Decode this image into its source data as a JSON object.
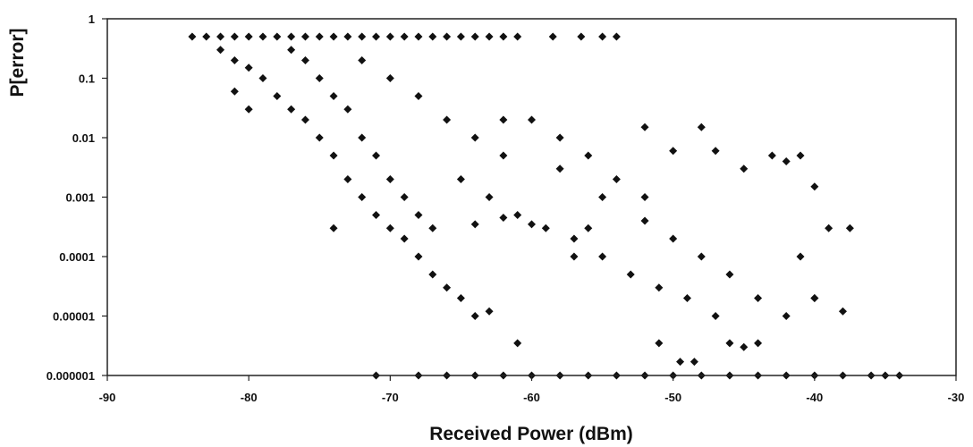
{
  "chart_data": {
    "type": "scatter",
    "title": "",
    "xlabel": "Received Power (dBm)",
    "ylabel": "P[error]",
    "xlim": [
      -90,
      -30
    ],
    "ylim": [
      1e-06,
      1
    ],
    "y_scale": "log",
    "grid": false,
    "legend": "none",
    "marker": "diamond",
    "marker_color": "#111111",
    "x_ticks": [
      -90,
      -80,
      -70,
      -60,
      -50,
      -40,
      -30
    ],
    "x_tick_labels": [
      "-90",
      "-80",
      "-70",
      "-60",
      "-50",
      "-40",
      "-30"
    ],
    "y_ticks": [
      1,
      0.1,
      0.01,
      0.001,
      0.0001,
      1e-05,
      1e-06
    ],
    "y_tick_labels": [
      "1",
      "0.1",
      "0.01",
      "0.001",
      "0.0001",
      "0.00001",
      "0.000001"
    ],
    "series": [
      {
        "points": [
          [
            -84,
            0.5
          ],
          [
            -83,
            0.5
          ],
          [
            -82,
            0.5
          ],
          [
            -81,
            0.5
          ],
          [
            -80,
            0.5
          ],
          [
            -79,
            0.5
          ],
          [
            -78,
            0.5
          ],
          [
            -77,
            0.5
          ],
          [
            -76,
            0.5
          ],
          [
            -75,
            0.5
          ],
          [
            -74,
            0.5
          ],
          [
            -73,
            0.5
          ],
          [
            -72,
            0.5
          ],
          [
            -71,
            0.5
          ],
          [
            -70,
            0.5
          ],
          [
            -69,
            0.5
          ],
          [
            -68,
            0.5
          ],
          [
            -67,
            0.5
          ],
          [
            -66,
            0.5
          ],
          [
            -65,
            0.5
          ],
          [
            -64,
            0.5
          ],
          [
            -63,
            0.5
          ],
          [
            -62,
            0.5
          ],
          [
            -61,
            0.5
          ],
          [
            -58.5,
            0.5
          ],
          [
            -56.5,
            0.5
          ],
          [
            -55,
            0.5
          ],
          [
            -54,
            0.5
          ],
          [
            -82,
            0.3
          ],
          [
            -81,
            0.2
          ],
          [
            -80,
            0.15
          ],
          [
            -79,
            0.1
          ],
          [
            -81,
            0.06
          ],
          [
            -80,
            0.03
          ],
          [
            -78,
            0.05
          ],
          [
            -77,
            0.03
          ],
          [
            -76,
            0.02
          ],
          [
            -75,
            0.01
          ],
          [
            -74,
            0.005
          ],
          [
            -73,
            0.002
          ],
          [
            -72,
            0.001
          ],
          [
            -71,
            0.0005
          ],
          [
            -70,
            0.0003
          ],
          [
            -69,
            0.0002
          ],
          [
            -68,
            0.0001
          ],
          [
            -67,
            5e-05
          ],
          [
            -66,
            3e-05
          ],
          [
            -65,
            2e-05
          ],
          [
            -64,
            1e-05
          ],
          [
            -63,
            1.2e-05
          ],
          [
            -77,
            0.3
          ],
          [
            -76,
            0.2
          ],
          [
            -75,
            0.1
          ],
          [
            -74,
            0.05
          ],
          [
            -73,
            0.03
          ],
          [
            -72,
            0.01
          ],
          [
            -71,
            0.005
          ],
          [
            -70,
            0.002
          ],
          [
            -69,
            0.001
          ],
          [
            -68,
            0.0005
          ],
          [
            -67,
            0.0003
          ],
          [
            -72,
            0.2
          ],
          [
            -70,
            0.1
          ],
          [
            -68,
            0.05
          ],
          [
            -66,
            0.02
          ],
          [
            -64,
            0.01
          ],
          [
            -62,
            0.005
          ],
          [
            -60,
            0.02
          ],
          [
            -58,
            0.01
          ],
          [
            -56,
            0.005
          ],
          [
            -54,
            0.002
          ],
          [
            -52,
            0.001
          ],
          [
            -65,
            0.002
          ],
          [
            -63,
            0.001
          ],
          [
            -61,
            0.0005
          ],
          [
            -59,
            0.0003
          ],
          [
            -57,
            0.0002
          ],
          [
            -55,
            0.0001
          ],
          [
            -53,
            5e-05
          ],
          [
            -51,
            3e-05
          ],
          [
            -49,
            2e-05
          ],
          [
            -47,
            1e-05
          ],
          [
            -62,
            0.02
          ],
          [
            -58,
            0.003
          ],
          [
            -55,
            0.001
          ],
          [
            -52,
            0.0004
          ],
          [
            -50,
            0.0002
          ],
          [
            -48,
            0.0001
          ],
          [
            -46,
            5e-05
          ],
          [
            -44,
            2e-05
          ],
          [
            -42,
            1e-05
          ],
          [
            -40,
            2e-05
          ],
          [
            -52,
            0.015
          ],
          [
            -48,
            0.015
          ],
          [
            -47,
            0.006
          ],
          [
            -50,
            0.006
          ],
          [
            -45,
            0.003
          ],
          [
            -43,
            0.005
          ],
          [
            -42,
            0.004
          ],
          [
            -41,
            0.005
          ],
          [
            -40,
            0.0015
          ],
          [
            -39,
            0.0003
          ],
          [
            -37.5,
            0.0003
          ],
          [
            -40,
            2e-05
          ],
          [
            -38,
            1.2e-05
          ],
          [
            -41,
            0.0001
          ],
          [
            -61,
            3.5e-06
          ],
          [
            -51,
            3.5e-06
          ],
          [
            -46,
            3.5e-06
          ],
          [
            -44,
            3.5e-06
          ],
          [
            -45,
            3e-06
          ],
          [
            -49.5,
            1.7e-06
          ],
          [
            -48.5,
            1.7e-06
          ],
          [
            -74,
            0.0003
          ],
          [
            -64,
            0.00035
          ],
          [
            -57,
            0.0001
          ],
          [
            -56,
            0.0003
          ],
          [
            -60,
            0.00035
          ],
          [
            -62,
            0.00045
          ],
          [
            -71,
            1e-06
          ],
          [
            -68,
            1e-06
          ],
          [
            -66,
            1e-06
          ],
          [
            -64,
            1e-06
          ],
          [
            -62,
            1e-06
          ],
          [
            -60,
            1e-06
          ],
          [
            -58,
            1e-06
          ],
          [
            -56,
            1e-06
          ],
          [
            -54,
            1e-06
          ],
          [
            -52,
            1e-06
          ],
          [
            -50,
            1e-06
          ],
          [
            -48,
            1e-06
          ],
          [
            -46,
            1e-06
          ],
          [
            -44,
            1e-06
          ],
          [
            -42,
            1e-06
          ],
          [
            -40,
            1e-06
          ],
          [
            -38,
            1e-06
          ],
          [
            -36,
            1e-06
          ],
          [
            -35,
            1e-06
          ],
          [
            -34,
            1e-06
          ]
        ]
      }
    ]
  }
}
